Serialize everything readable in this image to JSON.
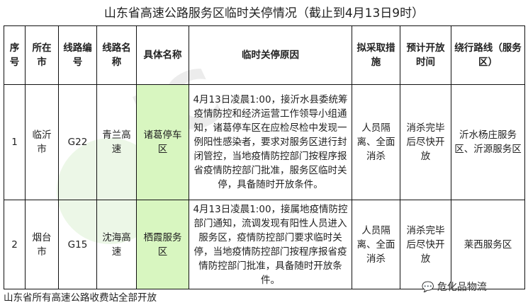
{
  "title": "山东省高速公路服务区临时关停情况（截止到4月13日9时）",
  "headers": [
    "序号",
    "所在市",
    "线路编号",
    "线路名称",
    "具体名称",
    "临时关停原因",
    "拟采取措施",
    "预计开放时间",
    "绕行路线（服务区）"
  ],
  "rows": [
    {
      "no": "1",
      "city": "临沂市",
      "code": "G22",
      "route": "青兰高速",
      "name": "诸葛停车区",
      "reason": "4月13日凌晨1:00，接沂水县委统筹疫情防控和经济运营工作领导小组通知，诸葛停车区在应检尽检中发现一例阳性感染者，要求对服务区进行封闭管控，当地疫情防控部门按程序报省疫情防控部门批准，服务区临时关停，具备随时开放条件。",
      "measure": "人员隔离、全面消杀",
      "open": "消杀完毕后尽快开放",
      "detour": "沂水杨庄服务区、沂源服务区"
    },
    {
      "no": "2",
      "city": "烟台市",
      "code": "G15",
      "route": "沈海高速",
      "name": "栖霞服务区",
      "reason": "4月13日凌晨1:00，接属地疫情防控部门通知，流调发现有阳性人员进入服务区，疫情防控部门要求临时关停，当地疫情防控部门按程序报省疫情防控部门批准，具备随时开放条件。",
      "measure": "人员隔离、全面消杀",
      "open": "消杀完毕后尽快开放",
      "detour": "莱西服务区"
    }
  ],
  "footer": "山东省所有高速公路收费站全部开放",
  "watermark_logo": "危化品物流"
}
